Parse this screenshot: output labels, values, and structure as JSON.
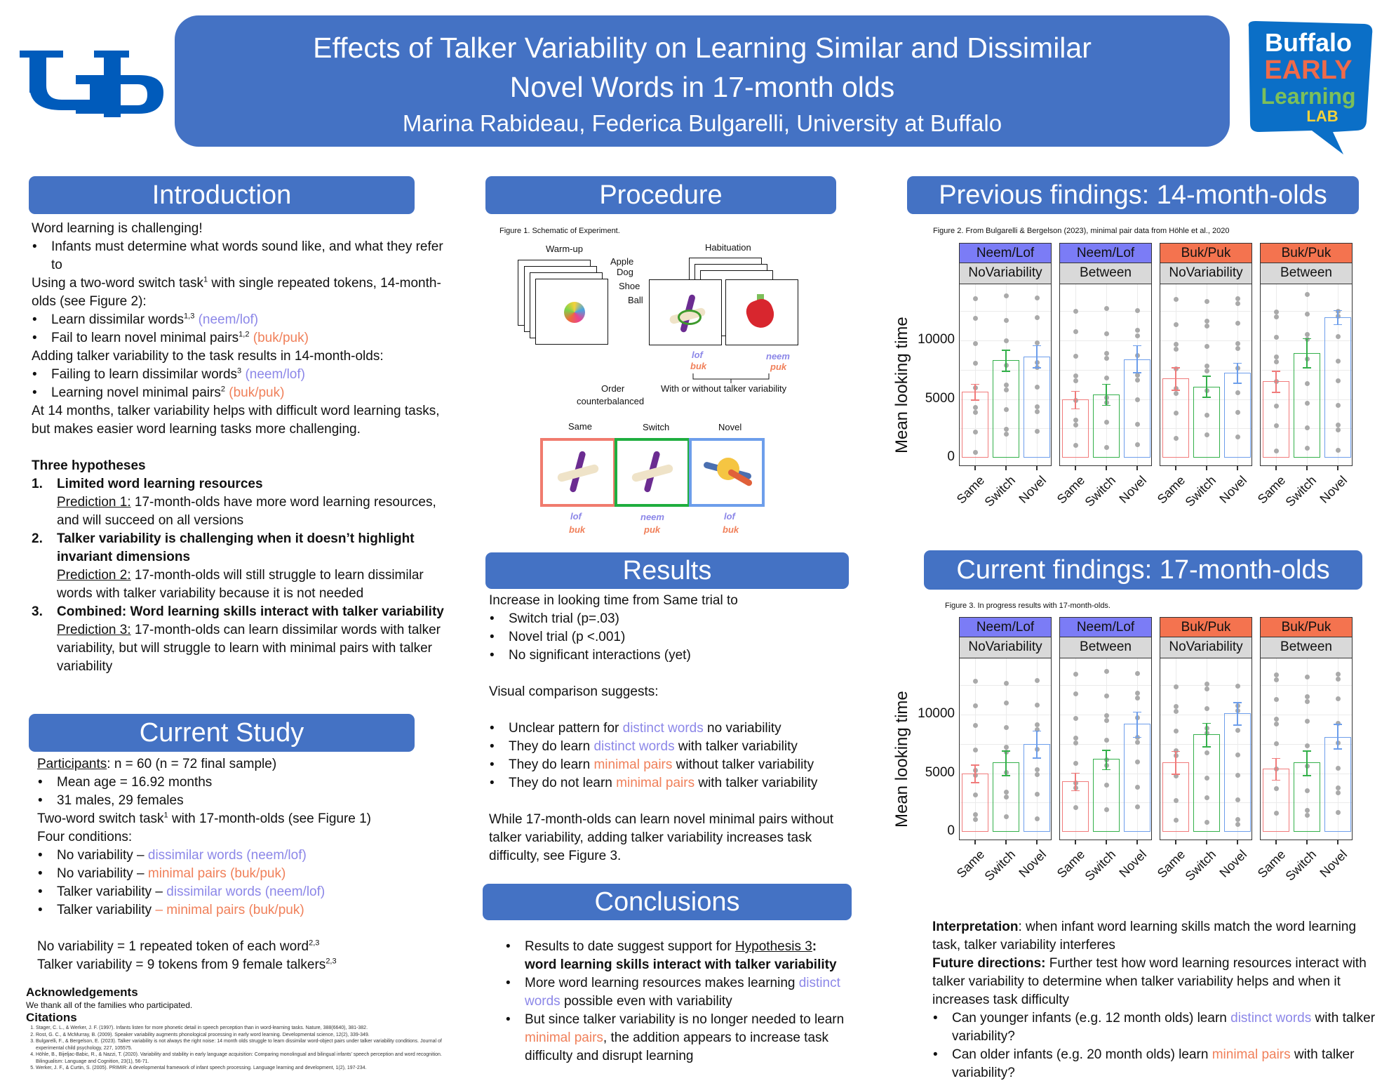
{
  "header": {
    "title_line1": "Effects of Talker Variability on Learning Similar and Dissimilar",
    "title_line2": "Novel Words in 17-month olds",
    "authors": "Marina Rabideau, Federica Bulgarelli, University at Buffalo",
    "left_logo": "UB",
    "right_logo": {
      "line1": "Buffalo",
      "line2": "EARLY",
      "line3": "Learning",
      "line4": "LAB"
    }
  },
  "colors": {
    "accent": "#4472c4",
    "dissimilar": "#8c87e8",
    "minimal": "#f0805a",
    "same": "#f07b7b",
    "switch": "#33b04a",
    "novel": "#6d9eeb",
    "strip_neem": "#7b7cf6",
    "strip_buk": "#f4734f"
  },
  "intro": {
    "title": "Introduction",
    "l1": "Word learning is challenging!",
    "b1": "Infants must determine what words sound like, and what they refer to",
    "l2a": "Using a two-word switch task",
    "l2sup": "1",
    "l2b": " with single repeated tokens, 14-month-olds (see Figure 2):",
    "b2": "Learn dissimilar words",
    "b2sup": "1,3",
    "b2c": " (neem/lof)",
    "b3": "Fail to learn novel minimal pairs",
    "b3sup": "1,2",
    "b3c": " (buk/puk)",
    "l3": "Adding talker variability to the task results in 14-month-olds:",
    "b4": "Failing to learn dissimilar words",
    "b4sup": "3",
    "b4c": " (neem/lof)",
    "b5": "Learning novel minimal pairs",
    "b5sup": "2",
    "b5c": " (buk/puk)",
    "l4": "At 14 months, talker variability helps with difficult word learning tasks, but makes easier word learning tasks more challenging.",
    "hyp_title": "Three hypotheses",
    "hypotheses": [
      {
        "num": "1.",
        "title": "Limited word learning resources",
        "pred_label": "Prediction 1:",
        "pred": " 17-month-olds have more word learning resources, and will succeed on all versions"
      },
      {
        "num": "2.",
        "title": "Talker variability is challenging when it doesn’t highlight invariant dimensions",
        "pred_label": "Prediction 2:",
        "pred": " 17-month-olds will still struggle to learn dissimilar words with talker variability because it is not needed"
      },
      {
        "num": "3.",
        "title": "Combined: Word learning skills interact with talker variability",
        "pred_label": "Prediction 3:",
        "pred": " 17-month-olds can learn dissimilar words with talker variability, but will struggle to learn with minimal pairs with talker variability"
      }
    ]
  },
  "study": {
    "title": "Current Study",
    "participants_label": "Participants",
    "participants": ": n = 60 (n = 72 final sample)",
    "b1": "Mean age = 16.92 months",
    "b2": "31 males, 29 females",
    "task_a": "Two-word switch task",
    "task_sup": "1",
    "task_b": " with 17-month-olds (see Figure 1)",
    "cond_label": "Four conditions:",
    "conditions": [
      {
        "a": "No variability – ",
        "b": "dissimilar words (neem/lof)",
        "type": "pur"
      },
      {
        "a": "No variability – ",
        "b": "minimal pairs (buk/puk)",
        "type": "org"
      },
      {
        "a": "Talker variability – ",
        "b": "dissimilar words (neem/lof)",
        "type": "pur"
      },
      {
        "a": "Talker variability ",
        "b": "– minimal pairs (buk/puk)",
        "type": "org"
      }
    ],
    "def1": "No variability = 1 repeated token of each word",
    "def1sup": "2,3",
    "def2": "Talker variability = 9 tokens from 9 female talkers",
    "def2sup": "2,3"
  },
  "ack": {
    "title": "Acknowledgements",
    "text": "We thank all of the families who participated.",
    "cit_title": "Citations",
    "citations": [
      "Stager, C. L., & Werker, J. F. (1997). Infants listen for more phonetic detail in speech perception than in word-learning tasks. Nature, 388(6640), 381-382.",
      "Rost, G. C., & McMurray, B. (2009). Speaker variability augments phonological processing in early word learning. Developmental science, 12(2), 339-349.",
      "Bulgarelli, F., & Bergelson, E. (2023). Talker variability is not always the right noise: 14 month olds struggle to learn dissimilar word-object pairs under talker variability conditions. Journal of experimental child psychology, 227, 105575.",
      "Höhle, B., Bijeljac-Babic, R., & Nazzi, T. (2020). Variability and stability in early language acquisition: Comparing monolingual and bilingual infants’ speech perception and word recognition. Bilingualism: Language and Cognition, 23(1), 56-71.",
      "Werker, J. F., & Curtin, S. (2005). PRIMIR: A developmental framework of infant speech processing. Language learning and development, 1(2), 197-234."
    ]
  },
  "procedure": {
    "title": "Procedure",
    "caption": "Figure 1. Schematic of Experiment.",
    "warmup": "Warm-up",
    "warmup_words": [
      "Apple",
      "Dog",
      "Shoe",
      "Ball"
    ],
    "habituation": "Habituation",
    "hab_words": [
      {
        "pur": "lof",
        "org": "buk"
      },
      {
        "pur": "neem",
        "org": "puk"
      }
    ],
    "variability_note": "With or without talker variability",
    "order_note_1": "Order",
    "order_note_2": "counterbalanced",
    "test_labels": [
      "Same",
      "Switch",
      "Novel"
    ],
    "test_words": [
      {
        "pur": "lof",
        "org": "buk"
      },
      {
        "pur": "neem",
        "org": "puk"
      },
      {
        "pur": "lof",
        "org": "buk"
      }
    ]
  },
  "results": {
    "title": "Results",
    "l1": "Increase in looking time from Same trial to",
    "b1": "Switch trial (p=.03)",
    "b2": "Novel trial (p <.001)",
    "b3": "No significant interactions (yet)",
    "l2": "Visual comparison suggests:",
    "v1a": "Unclear pattern for ",
    "v1b": "distinct words",
    "v1c": " no variability",
    "v2a": "They do learn ",
    "v2b": "distinct words",
    "v2c": " with talker variability",
    "v3a": "They do learn ",
    "v3b": "minimal pairs",
    "v3c": " without talker variability",
    "v4a": "They do not learn ",
    "v4b": "minimal pairs",
    "v4c": " with talker variability",
    "l3": "While 17-month-olds can learn novel minimal pairs without talker variability, adding talker variability increases task difficulty, see Figure 3."
  },
  "conclusions": {
    "title": "Conclusions",
    "c1a": "Results to date suggest support for ",
    "c1b": "Hypothesis 3",
    "c1c": ": word learning skills interact with talker variability",
    "c2a": "More word learning resources makes learning ",
    "c2b": "distinct words",
    "c2c": " possible even with variability",
    "c3a": "But since talker variability is no longer needed to learn ",
    "c3b": "minimal pairs",
    "c3c": ", the addition appears to increase task difficulty and disrupt learning"
  },
  "previous": {
    "title": "Previous findings: 14-month-olds",
    "caption": "Figure 2.  From Bulgarelli & Bergelson (2023), minimal pair data from Höhle et al., 2020"
  },
  "current": {
    "title": "Current findings: 17-month-olds",
    "caption": "Figure 3.  In progress results with 17-month-olds."
  },
  "interpretation": {
    "label": "Interpretation",
    "text": ": when infant word learning skills match the word learning task, talker variability interferes",
    "future_label": "Future directions:",
    "future": " Further test how word learning resources interact with talker variability to determine when talker variability helps and when it increases task difficulty",
    "q1a": "Can younger infants (e.g. 12 month olds) learn ",
    "q1b": "distinct words",
    "q1c": " with talker variability?",
    "q2a": "Can older infants (e.g. 20 month olds) learn ",
    "q2b": "minimal pairs",
    "q2c": " with talker variability?"
  },
  "chart_data": [
    {
      "type": "bar",
      "title": "Figure 2. From Bulgarelli & Bergelson (2023), minimal pair data from Höhle et al., 2020",
      "ylabel": "Mean looking time",
      "xlabel": "",
      "ylim": [
        0,
        14500
      ],
      "yticks": [
        0,
        5000,
        10000
      ],
      "grid": true,
      "categories": [
        "Same",
        "Switch",
        "Novel"
      ],
      "panels": [
        {
          "facet1": "Neem/Lof",
          "facet2": "NoVariability",
          "values": [
            5600,
            8300,
            8600
          ],
          "err": [
            [
              4950,
              6300
            ],
            [
              7400,
              9200
            ],
            [
              7700,
              9600
            ]
          ]
        },
        {
          "facet1": "Neem/Lof",
          "facet2": "Between",
          "values": [
            4950,
            5400,
            8400
          ],
          "err": [
            [
              4200,
              5700
            ],
            [
              4500,
              6300
            ],
            [
              7300,
              9600
            ]
          ]
        },
        {
          "facet1": "Buk/Puk",
          "facet2": "NoVariability",
          "values": [
            6750,
            6050,
            7250
          ],
          "err": [
            [
              5800,
              7700
            ],
            [
              5200,
              7000
            ],
            [
              6400,
              8100
            ]
          ]
        },
        {
          "facet1": "Buk/Puk",
          "facet2": "Between",
          "values": [
            6500,
            8950,
            11950
          ],
          "err": [
            [
              5600,
              7400
            ],
            [
              7700,
              10200
            ],
            [
              11400,
              12600
            ]
          ]
        }
      ]
    },
    {
      "type": "bar",
      "title": "Figure 3. In progress results with 17-month-olds.",
      "ylabel": "Mean looking time",
      "xlabel": "",
      "ylim": [
        0,
        14500
      ],
      "yticks": [
        0,
        5000,
        10000
      ],
      "grid": true,
      "categories": [
        "Same",
        "Switch",
        "Novel"
      ],
      "panels": [
        {
          "facet1": "Neem/Lof",
          "facet2": "NoVariability",
          "values": [
            4950,
            5900,
            7500
          ],
          "err": [
            [
              4250,
              5750
            ],
            [
              4850,
              6950
            ],
            [
              6350,
              8650
            ]
          ]
        },
        {
          "facet1": "Neem/Lof",
          "facet2": "Between",
          "values": [
            4300,
            6200,
            9200
          ],
          "err": [
            [
              3550,
              5050
            ],
            [
              5350,
              7000
            ],
            [
              8100,
              10250
            ]
          ]
        },
        {
          "facet1": "Buk/Puk",
          "facet2": "NoVariability",
          "values": [
            5900,
            8300,
            10100
          ],
          "err": [
            [
              4950,
              6900
            ],
            [
              7300,
              9300
            ],
            [
              9150,
              11050
            ]
          ]
        },
        {
          "facet1": "Buk/Puk",
          "facet2": "Between",
          "values": [
            5400,
            5900,
            8100
          ],
          "err": [
            [
              4450,
              6300
            ],
            [
              4850,
              6950
            ],
            [
              7100,
              9200
            ]
          ]
        }
      ]
    }
  ]
}
